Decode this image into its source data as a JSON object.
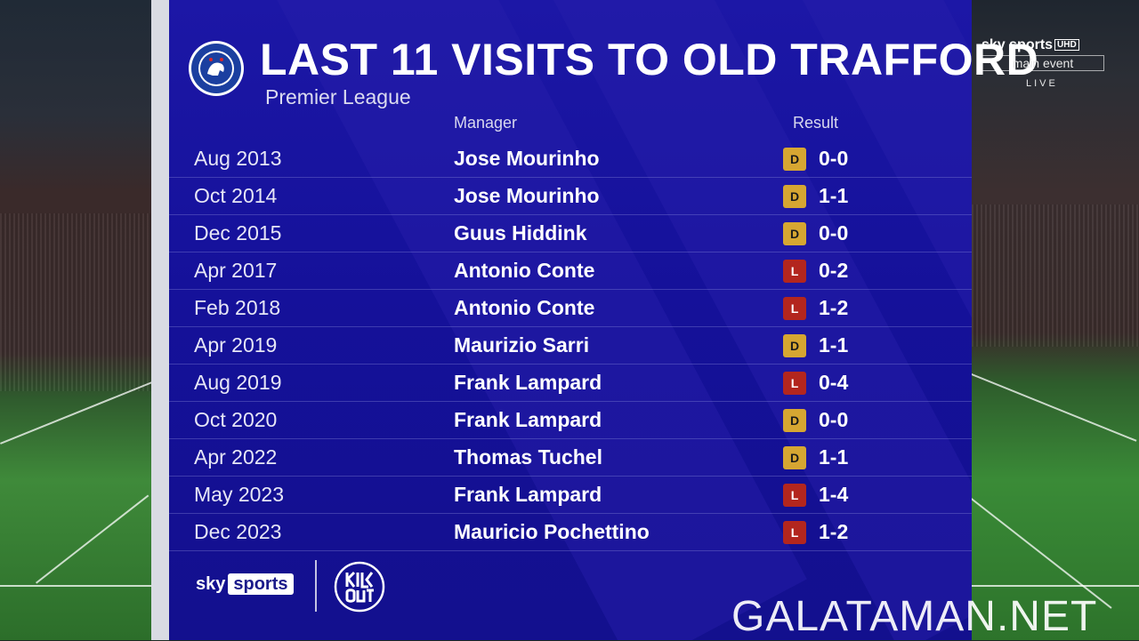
{
  "header": {
    "title": "LAST 11 VISITS TO OLD TRAFFORD",
    "subtitle": "Premier League",
    "col_manager": "Manager",
    "col_result": "Result"
  },
  "rows": [
    {
      "date": "Aug 2013",
      "manager": "Jose Mourinho",
      "outcome": "D",
      "score": "0-0"
    },
    {
      "date": "Oct 2014",
      "manager": "Jose Mourinho",
      "outcome": "D",
      "score": "1-1"
    },
    {
      "date": "Dec 2015",
      "manager": "Guus Hiddink",
      "outcome": "D",
      "score": "0-0"
    },
    {
      "date": "Apr 2017",
      "manager": "Antonio Conte",
      "outcome": "L",
      "score": "0-2"
    },
    {
      "date": "Feb 2018",
      "manager": "Antonio Conte",
      "outcome": "L",
      "score": "1-2"
    },
    {
      "date": "Apr 2019",
      "manager": "Maurizio Sarri",
      "outcome": "D",
      "score": "1-1"
    },
    {
      "date": "Aug 2019",
      "manager": "Frank Lampard",
      "outcome": "L",
      "score": "0-4"
    },
    {
      "date": "Oct 2020",
      "manager": "Frank Lampard",
      "outcome": "D",
      "score": "0-0"
    },
    {
      "date": "Apr 2022",
      "manager": "Thomas Tuchel",
      "outcome": "D",
      "score": "1-1"
    },
    {
      "date": "May 2023",
      "manager": "Frank Lampard",
      "outcome": "L",
      "score": "1-4"
    },
    {
      "date": "Dec 2023",
      "manager": "Mauricio Pochettino",
      "outcome": "L",
      "score": "1-2"
    }
  ],
  "outcome_colors": {
    "D": "#d6a632",
    "L": "#b3261e"
  },
  "footer": {
    "sky_text": "sky",
    "sports_text": "sports",
    "kickout_icon": "kick-it-out-logo"
  },
  "broadcaster": {
    "top": "sky sports",
    "hd": "UHD",
    "channel": "main event",
    "live": "LIVE"
  },
  "watermark": "GALATAMAN.NET",
  "colors": {
    "panel": "#16129c",
    "gold": "#d6a632",
    "red": "#b3261e"
  }
}
